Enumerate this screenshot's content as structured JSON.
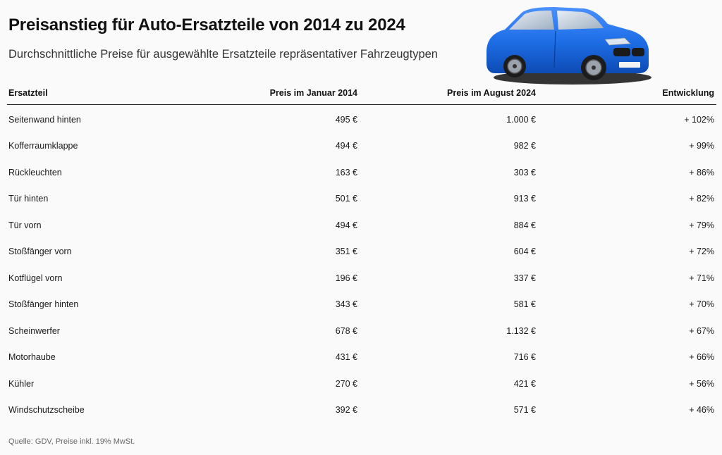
{
  "title": "Preisanstieg für Auto-Ersatzteile von 2014 zu 2024",
  "subtitle": "Durchschnittliche Preise für ausgewählte Ersatzteile repräsentativer Fahrzeugtypen",
  "header": {
    "col1": "Ersatzteil",
    "col2": "Preis im Januar 2014",
    "col3": "Preis im August 2024",
    "col4": "Entwicklung"
  },
  "source": "Quelle: GDV, Preise inkl. 19% MwSt.",
  "colors": {
    "car_body": "#1f6fe8",
    "text": "#111111",
    "background": "#fafafa"
  },
  "chart_data": {
    "type": "table",
    "columns": [
      "Ersatzteil",
      "Preis im Januar 2014",
      "Preis im August 2024",
      "Entwicklung"
    ],
    "rows": [
      {
        "part": "Seitenwand hinten",
        "price_2014": "495 €",
        "price_2024": "1.000 €",
        "change": "+ 102%"
      },
      {
        "part": "Kofferraumklappe",
        "price_2014": "494 €",
        "price_2024": "982 €",
        "change": "+ 99%"
      },
      {
        "part": "Rückleuchten",
        "price_2014": "163 €",
        "price_2024": "303 €",
        "change": "+ 86%"
      },
      {
        "part": "Tür hinten",
        "price_2014": "501 €",
        "price_2024": "913 €",
        "change": "+ 82%"
      },
      {
        "part": "Tür vorn",
        "price_2014": "494 €",
        "price_2024": "884 €",
        "change": "+ 79%"
      },
      {
        "part": "Stoßfänger vorn",
        "price_2014": "351 €",
        "price_2024": "604 €",
        "change": "+ 72%"
      },
      {
        "part": "Kotflügel vorn",
        "price_2014": "196 €",
        "price_2024": "337 €",
        "change": "+ 71%"
      },
      {
        "part": "Stoßfänger hinten",
        "price_2014": "343 €",
        "price_2024": "581 €",
        "change": "+ 70%"
      },
      {
        "part": "Scheinwerfer",
        "price_2014": "678 €",
        "price_2024": "1.132 €",
        "change": "+ 67%"
      },
      {
        "part": "Motorhaube",
        "price_2014": "431 €",
        "price_2024": "716 €",
        "change": "+ 66%"
      },
      {
        "part": "Kühler",
        "price_2014": "270 €",
        "price_2024": "421 €",
        "change": "+ 56%"
      },
      {
        "part": "Windschutzscheibe",
        "price_2014": "392 €",
        "price_2024": "571 €",
        "change": "+ 46%"
      }
    ]
  }
}
